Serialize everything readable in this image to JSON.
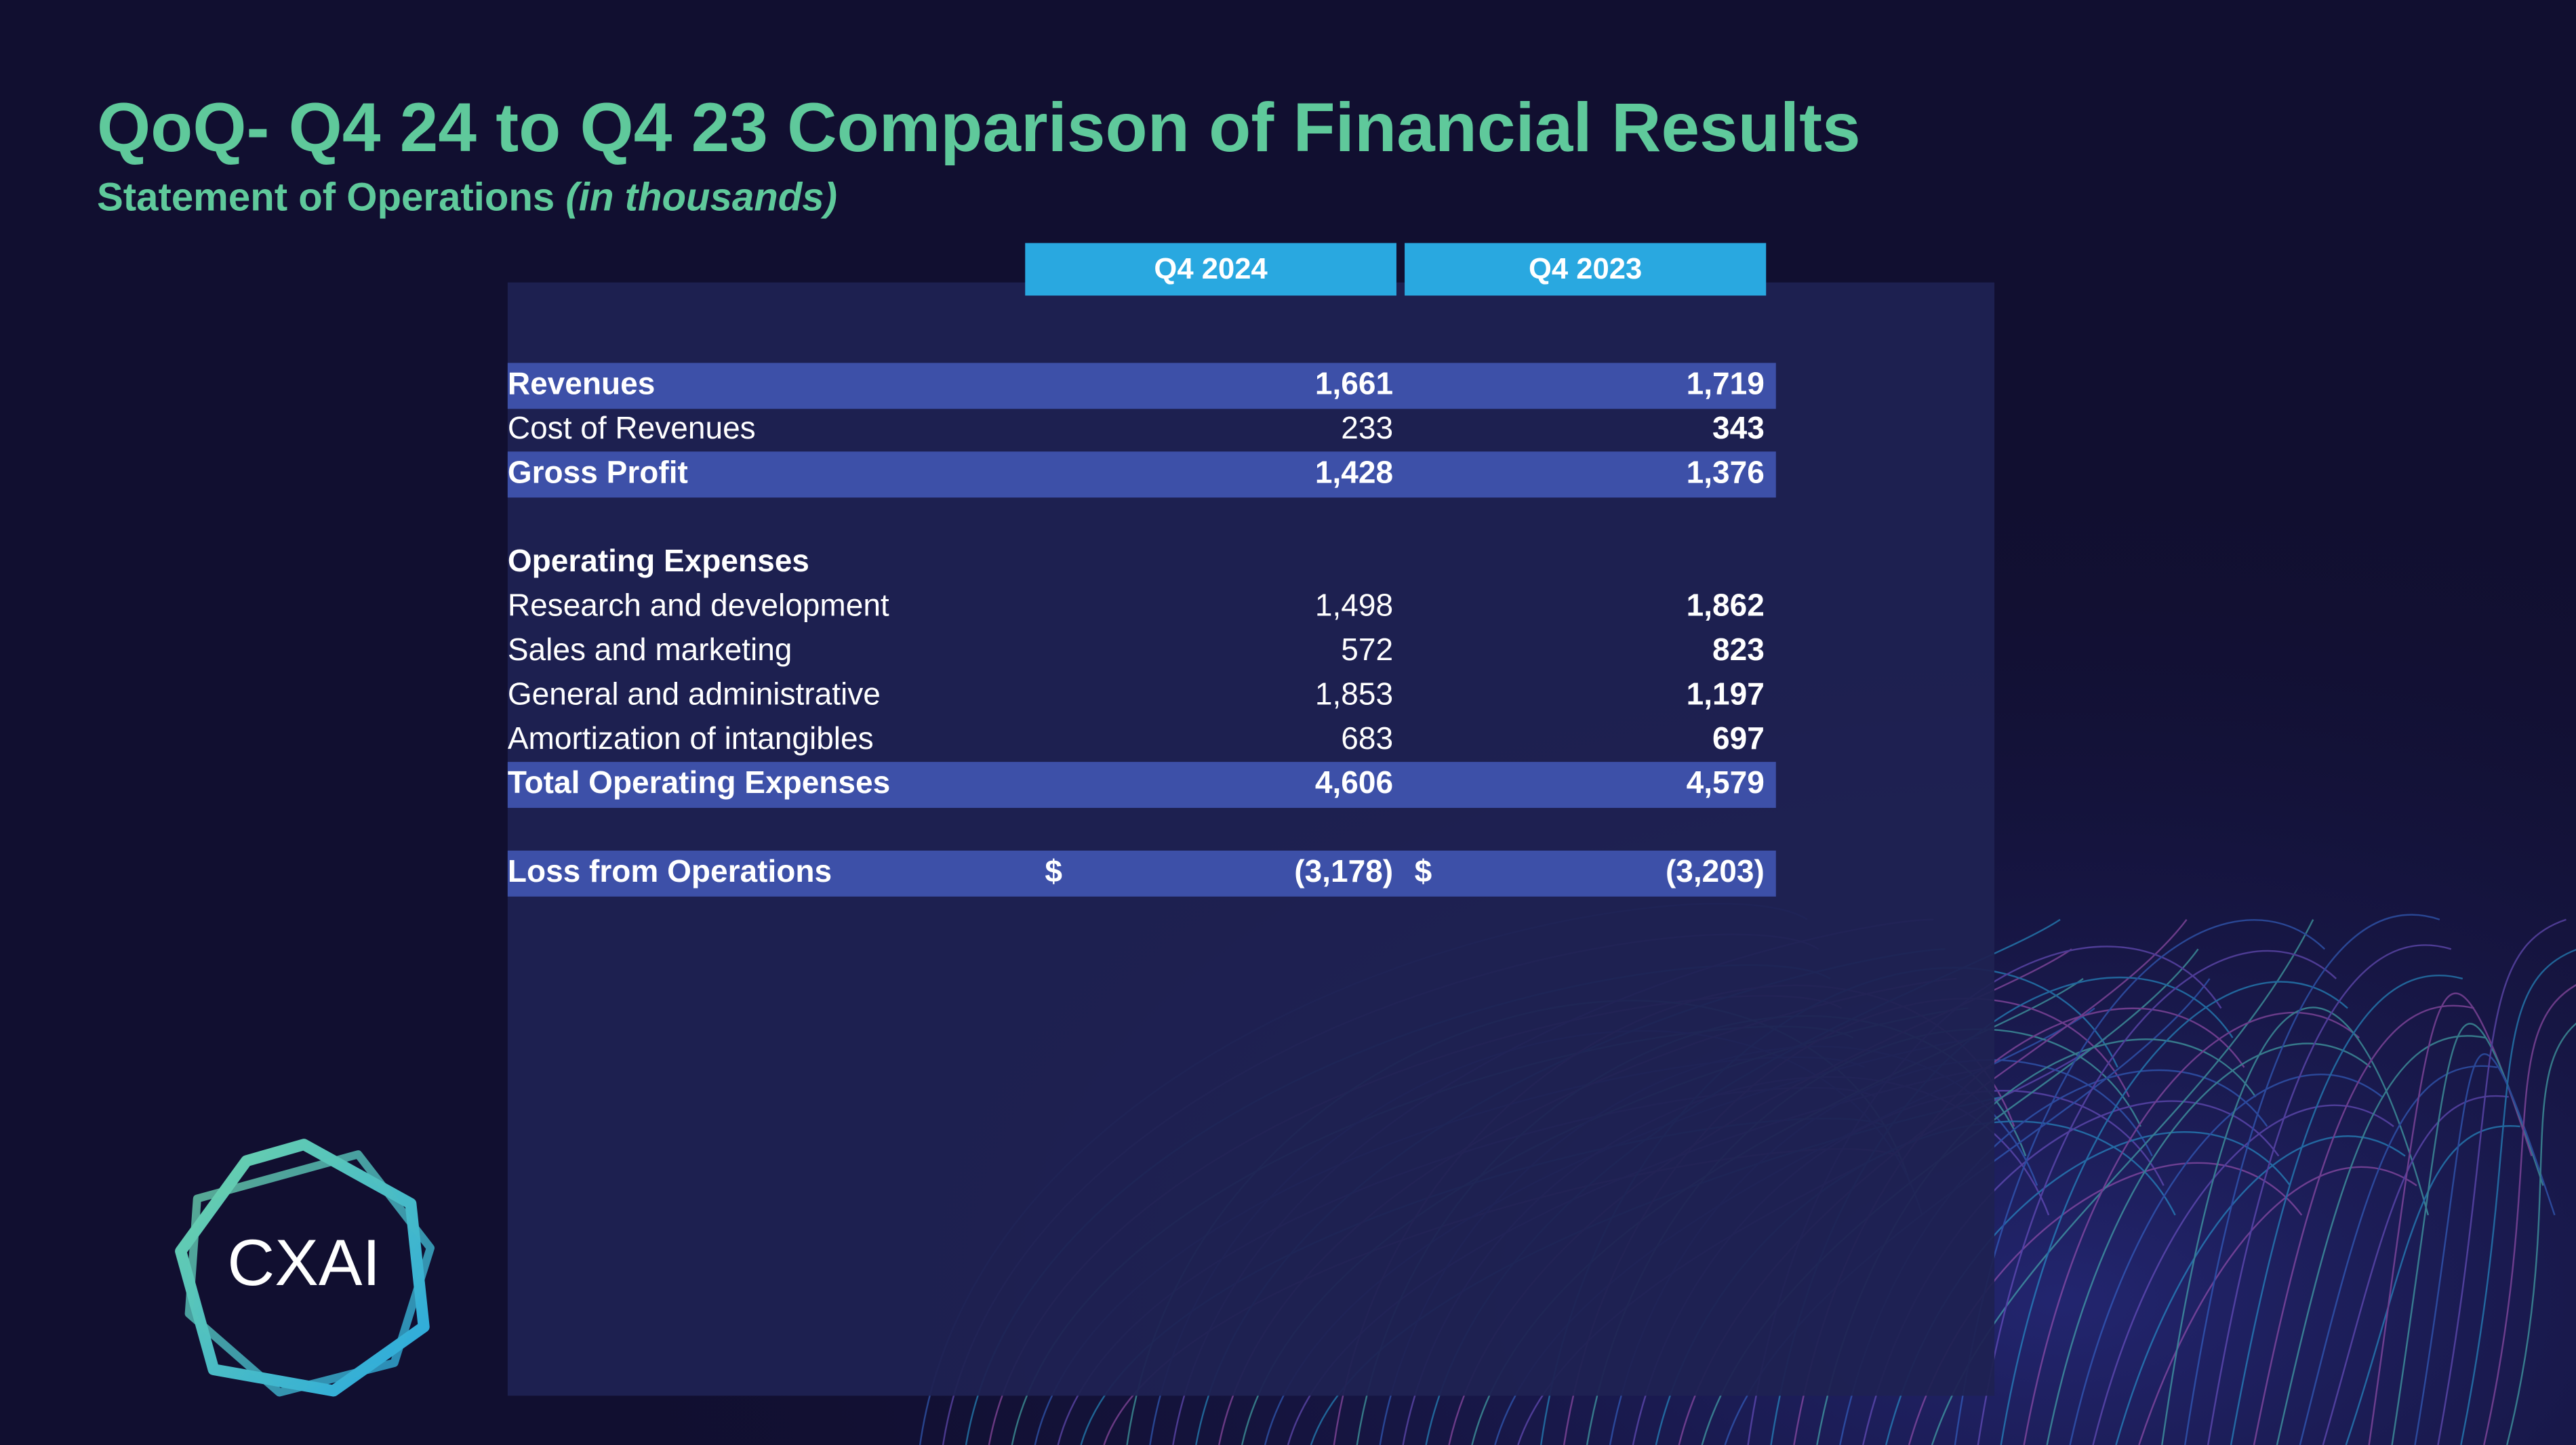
{
  "header": {
    "title": "QoQ- Q4 24 to Q4 23 Comparison of Financial Results",
    "subtitle": "Statement of Operations",
    "subtitle_note": "(in thousands)"
  },
  "table": {
    "columns": [
      "Q4 2024",
      "Q4 2023"
    ],
    "sections": [
      [
        {
          "label": "Revenues",
          "values": [
            "1,661",
            "1,719"
          ],
          "highlight": true
        },
        {
          "label": "Cost of Revenues",
          "values": [
            "233",
            "343"
          ]
        },
        {
          "label": "Gross Profit",
          "values": [
            "1,428",
            "1,376"
          ],
          "highlight": true
        }
      ],
      [
        {
          "label": "Operating Expenses",
          "bold": true
        },
        {
          "label": "Research and development",
          "values": [
            "1,498",
            "1,862"
          ]
        },
        {
          "label": "Sales and marketing",
          "values": [
            "572",
            "823"
          ]
        },
        {
          "label": "General and administrative",
          "values": [
            "1,853",
            "1,197"
          ]
        },
        {
          "label": "Amortization of intangibles",
          "values": [
            "683",
            "697"
          ]
        },
        {
          "label": "Total Operating Expenses",
          "values": [
            "4,606",
            "4,579"
          ],
          "highlight": true
        }
      ],
      [
        {
          "label": "Loss from Operations",
          "currency": [
            "$",
            "$"
          ],
          "values": [
            "(3,178)",
            "(3,203)"
          ],
          "highlight": true
        }
      ]
    ]
  },
  "logo": {
    "text": "CXAI"
  }
}
